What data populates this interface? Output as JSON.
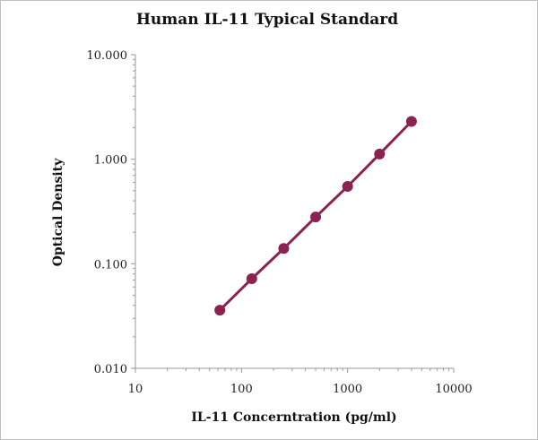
{
  "chart_data": {
    "type": "line",
    "title": "Human IL-11 Typical Standard",
    "xlabel": "IL-11 Concerntration (pg/ml)",
    "ylabel": "Optical Density",
    "x_scale": "log",
    "y_scale": "log",
    "xlim": [
      10,
      10000
    ],
    "ylim": [
      0.01,
      10
    ],
    "x_ticks": [
      "10",
      "100",
      "1000",
      "10000"
    ],
    "y_ticks": [
      "0.010",
      "0.100",
      "1.000",
      "10.000"
    ],
    "grid": false,
    "legend": "none",
    "series": [
      {
        "x": [
          62.5,
          125,
          250,
          500,
          1000,
          2000,
          4000
        ],
        "y": [
          0.036,
          0.072,
          0.14,
          0.28,
          0.55,
          1.12,
          2.3
        ]
      }
    ],
    "colors": {
      "series": "#8b2252",
      "axis": "#999999"
    }
  }
}
